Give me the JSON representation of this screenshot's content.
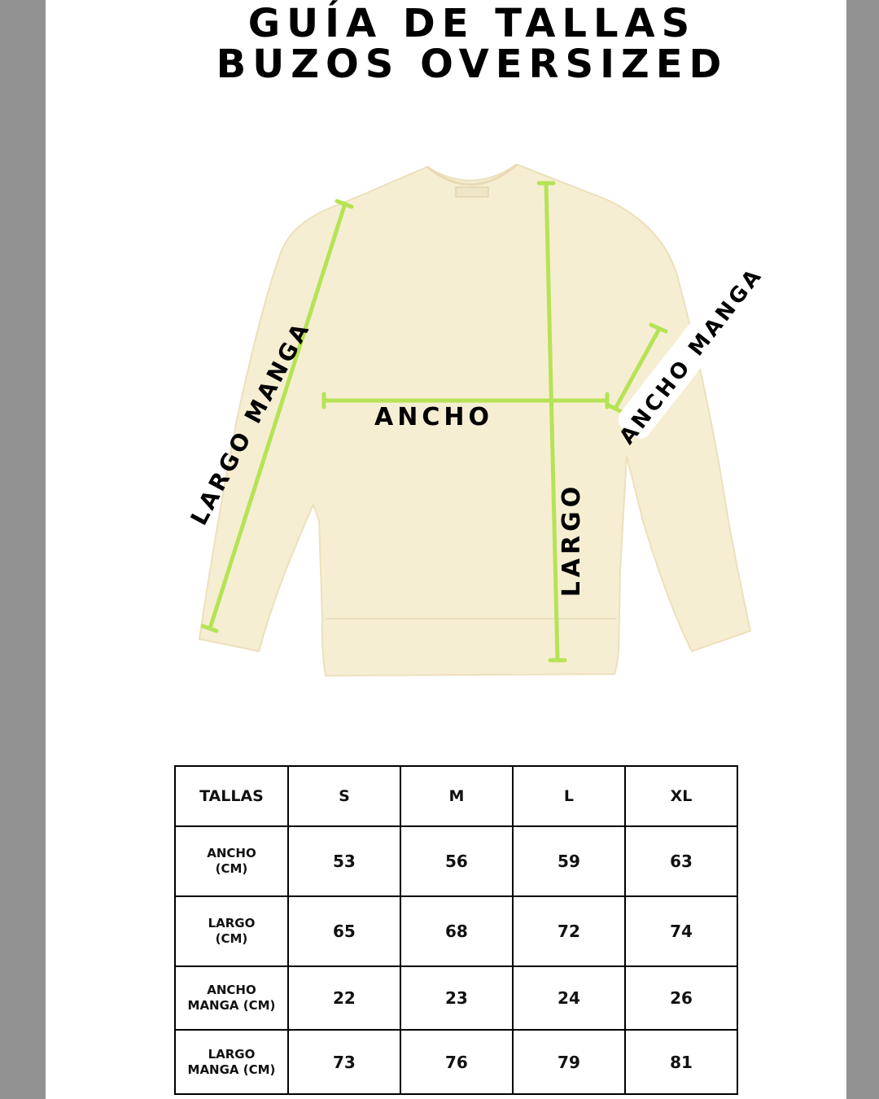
{
  "title": {
    "line1": "GUÍA DE TALLAS",
    "line2": "BUZOS OVERSIZED"
  },
  "colors": {
    "garment": "#f6eed3",
    "measure_line": "#b6e356",
    "background": "#929292"
  },
  "labels": {
    "ancho": "ANCHO",
    "largo": "LARGO",
    "largo_manga": "LARGO MANGA",
    "ancho_manga": "ANCHO MANGA"
  },
  "table": {
    "header": [
      "TALLAS",
      "S",
      "M",
      "L",
      "XL"
    ],
    "rows": [
      {
        "label1": "ANCHO",
        "label2": "(CM)",
        "values": [
          "53",
          "56",
          "59",
          "63"
        ]
      },
      {
        "label1": "LARGO",
        "label2": "(CM)",
        "values": [
          "65",
          "68",
          "72",
          "74"
        ]
      },
      {
        "label1": "ANCHO",
        "label2": "MANGA (CM)",
        "values": [
          "22",
          "23",
          "24",
          "26"
        ]
      },
      {
        "label1": "LARGO",
        "label2": "MANGA (CM)",
        "values": [
          "73",
          "76",
          "79",
          "81"
        ]
      }
    ]
  }
}
